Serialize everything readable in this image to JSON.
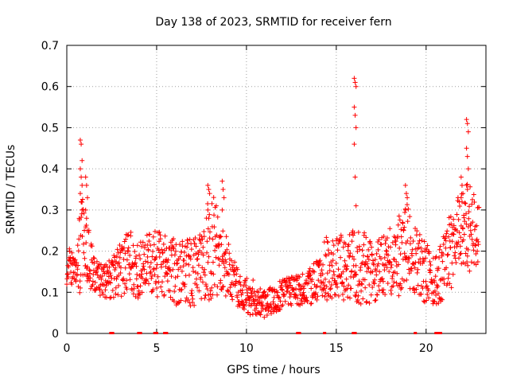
{
  "chart_data": {
    "type": "scatter",
    "title": "Day 138 of 2023, SRMTID for receiver fern",
    "xlabel": "GPS time / hours",
    "ylabel": "SRMTID / TECUs",
    "xlim": [
      0,
      23.33
    ],
    "ylim": [
      0,
      0.7
    ],
    "x_ticks": [
      0,
      5,
      10,
      15,
      20
    ],
    "x_tick_labels": [
      "0",
      "5",
      "10",
      "15",
      "20"
    ],
    "y_ticks": [
      0,
      0.1,
      0.2,
      0.3,
      0.4,
      0.5,
      0.6,
      0.7
    ],
    "y_tick_labels": [
      "0",
      "0.1",
      "0.2",
      "0.3",
      "0.4",
      "0.5",
      "0.6",
      "0.7"
    ],
    "grid": true,
    "marker": "plus",
    "color": "#ff0000",
    "series_envelope": {
      "description_hours": [
        0,
        0.5,
        0.8,
        1.0,
        1.5,
        2.0,
        2.5,
        3.0,
        3.5,
        4.0,
        4.5,
        5.0,
        5.5,
        6.0,
        6.5,
        7.0,
        7.5,
        8.0,
        8.5,
        9.0,
        9.5,
        10.0,
        10.5,
        11.0,
        11.5,
        12.0,
        12.5,
        13.0,
        13.5,
        14.0,
        14.5,
        15.0,
        15.5,
        16.0,
        16.5,
        17.0,
        17.5,
        18.0,
        18.5,
        19.0,
        19.5,
        20.0,
        20.5,
        21.0,
        21.5,
        22.0,
        22.5,
        23.0
      ],
      "median_values": [
        0.16,
        0.15,
        0.2,
        0.22,
        0.14,
        0.12,
        0.13,
        0.15,
        0.16,
        0.15,
        0.17,
        0.16,
        0.16,
        0.15,
        0.14,
        0.14,
        0.15,
        0.2,
        0.19,
        0.14,
        0.1,
        0.09,
        0.08,
        0.07,
        0.08,
        0.09,
        0.1,
        0.1,
        0.11,
        0.13,
        0.15,
        0.16,
        0.15,
        0.16,
        0.15,
        0.14,
        0.15,
        0.16,
        0.18,
        0.2,
        0.16,
        0.14,
        0.12,
        0.15,
        0.2,
        0.23,
        0.25,
        0.22
      ],
      "spread_values": [
        0.05,
        0.05,
        0.14,
        0.1,
        0.06,
        0.04,
        0.06,
        0.08,
        0.09,
        0.08,
        0.08,
        0.09,
        0.09,
        0.1,
        0.09,
        0.09,
        0.1,
        0.15,
        0.12,
        0.08,
        0.06,
        0.05,
        0.05,
        0.04,
        0.04,
        0.04,
        0.04,
        0.04,
        0.05,
        0.06,
        0.09,
        0.08,
        0.09,
        0.1,
        0.1,
        0.08,
        0.09,
        0.1,
        0.11,
        0.12,
        0.1,
        0.08,
        0.07,
        0.09,
        0.12,
        0.13,
        0.12,
        0.08
      ]
    },
    "spikes": [
      {
        "x": 0.8,
        "values": [
          0.47,
          0.46,
          0.42,
          0.4,
          0.38,
          0.36,
          0.34,
          0.32,
          0.3
        ]
      },
      {
        "x": 1.1,
        "values": [
          0.38,
          0.36,
          0.33,
          0.3,
          0.28,
          0.25
        ]
      },
      {
        "x": 7.9,
        "values": [
          0.36,
          0.35,
          0.34,
          0.3,
          0.28
        ]
      },
      {
        "x": 8.7,
        "values": [
          0.37,
          0.35,
          0.33,
          0.3
        ]
      },
      {
        "x": 16.05,
        "values": [
          0.62,
          0.61,
          0.6,
          0.55,
          0.53,
          0.5,
          0.46,
          0.38,
          0.31
        ]
      },
      {
        "x": 18.9,
        "values": [
          0.36,
          0.34,
          0.33,
          0.3
        ]
      },
      {
        "x": 22.0,
        "values": [
          0.38,
          0.36,
          0.34,
          0.33
        ]
      },
      {
        "x": 22.3,
        "values": [
          0.52,
          0.51,
          0.49,
          0.45,
          0.43,
          0.4,
          0.36,
          0.35
        ]
      }
    ],
    "zero_markers_x": [
      2.45,
      2.55,
      4.0,
      4.1,
      4.9,
      5.0,
      5.45,
      5.55,
      12.85,
      12.95,
      14.35,
      15.95,
      16.05,
      19.4,
      20.55,
      20.7,
      20.8
    ]
  }
}
